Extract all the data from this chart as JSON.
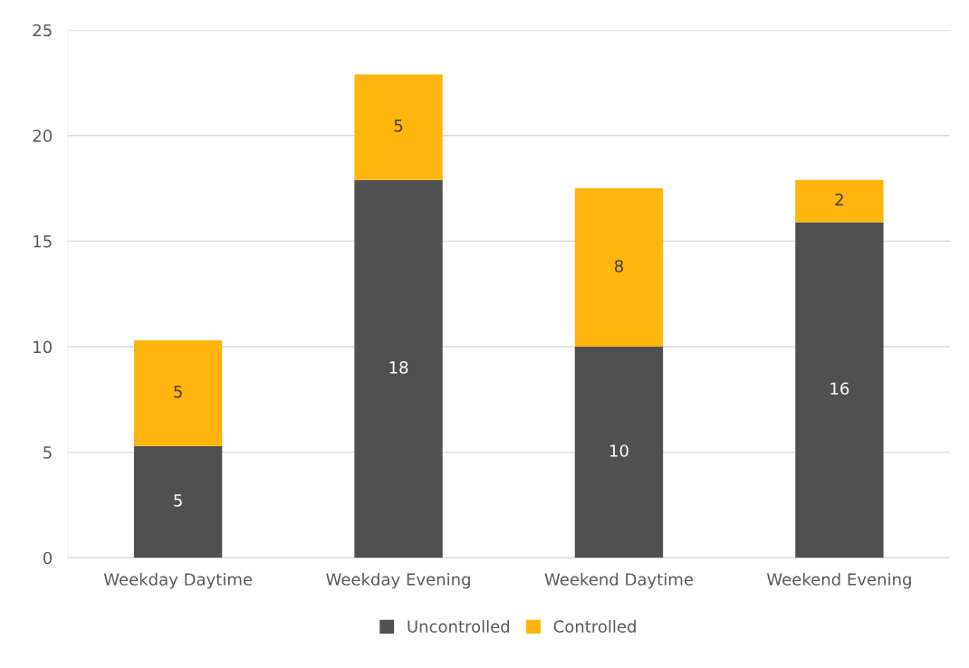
{
  "chart_data": {
    "type": "bar",
    "stacked": true,
    "categories": [
      "Weekday Daytime",
      "Weekday Evening",
      "Weekend Daytime",
      "Weekend Evening"
    ],
    "series": [
      {
        "name": "Uncontrolled",
        "color": "#505050",
        "values": [
          5.3,
          17.9,
          10.0,
          15.9
        ],
        "value_labels": [
          "5",
          "18",
          "10",
          "16"
        ]
      },
      {
        "name": "Controlled",
        "color": "#ffb50d",
        "values": [
          5.0,
          5.0,
          7.5,
          2.0
        ],
        "value_labels": [
          "5",
          "5",
          "8",
          "2"
        ]
      }
    ],
    "ylim": [
      0,
      25
    ],
    "yticks": [
      0,
      5,
      10,
      15,
      20,
      25
    ],
    "grid": "y",
    "legend": "bottom"
  }
}
